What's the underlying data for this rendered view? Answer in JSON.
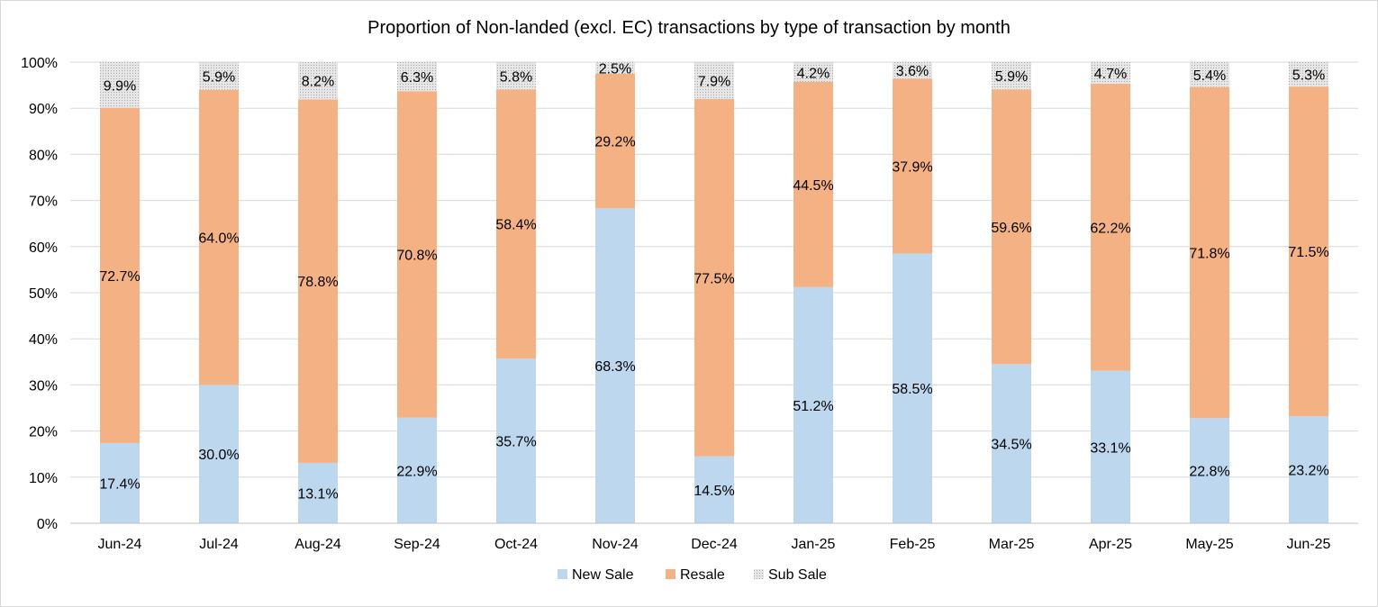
{
  "chart_data": {
    "type": "bar",
    "stacked": true,
    "title": "Proportion of Non-landed (excl. EC) transactions by type of transaction by month",
    "categories": [
      "Jun-24",
      "Jul-24",
      "Aug-24",
      "Sep-24",
      "Oct-24",
      "Nov-24",
      "Dec-24",
      "Jan-25",
      "Feb-25",
      "Mar-25",
      "Apr-25",
      "May-25",
      "Jun-25"
    ],
    "series": [
      {
        "name": "New Sale",
        "color": "#bdd7ee",
        "values": [
          17.4,
          30.0,
          13.1,
          22.9,
          35.7,
          68.3,
          14.5,
          51.2,
          58.5,
          34.5,
          33.1,
          22.8,
          23.2
        ],
        "labels": [
          "17.4%",
          "30.0%",
          "13.1%",
          "22.9%",
          "35.7%",
          "68.3%",
          "14.5%",
          "51.2%",
          "58.5%",
          "34.5%",
          "33.1%",
          "22.8%",
          "23.2%"
        ]
      },
      {
        "name": "Resale",
        "color": "#f4b183",
        "values": [
          72.7,
          64.0,
          78.8,
          70.8,
          58.4,
          29.2,
          77.5,
          44.5,
          37.9,
          59.6,
          62.2,
          71.8,
          71.5
        ],
        "labels": [
          "72.7%",
          "64.0%",
          "78.8%",
          "70.8%",
          "58.4%",
          "29.2%",
          "77.5%",
          "44.5%",
          "37.9%",
          "59.6%",
          "62.2%",
          "71.8%",
          "71.5%"
        ]
      },
      {
        "name": "Sub Sale",
        "color": "#d9d9d9",
        "values": [
          9.9,
          5.9,
          8.2,
          6.3,
          5.8,
          2.5,
          7.9,
          4.2,
          3.6,
          5.9,
          4.7,
          5.4,
          5.3
        ],
        "labels": [
          "9.9%",
          "5.9%",
          "8.2%",
          "6.3%",
          "5.8%",
          "2.5%",
          "7.9%",
          "4.2%",
          "3.6%",
          "5.9%",
          "4.7%",
          "5.4%",
          "5.3%"
        ]
      }
    ],
    "ylim": [
      0,
      100
    ],
    "yticks": [
      "0%",
      "10%",
      "20%",
      "30%",
      "40%",
      "50%",
      "60%",
      "70%",
      "80%",
      "90%",
      "100%"
    ],
    "xlabel": "",
    "ylabel": "",
    "grid": true,
    "legend": "bottom"
  }
}
